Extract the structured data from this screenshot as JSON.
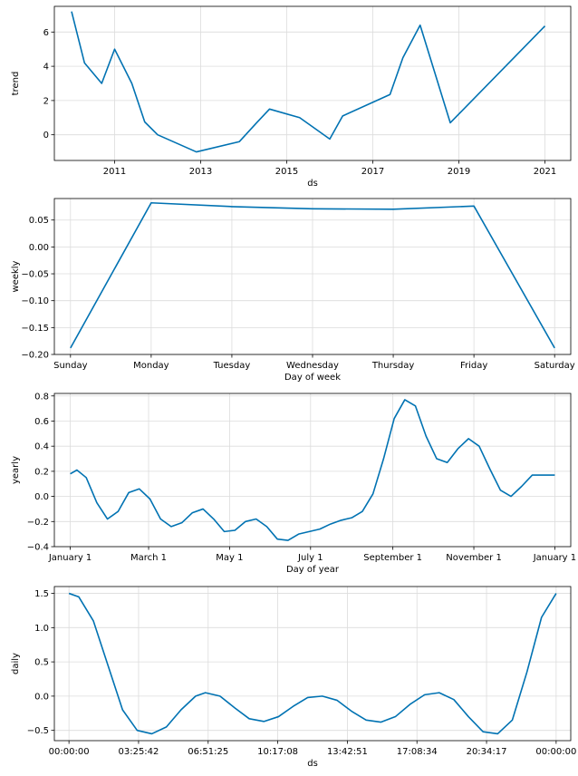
{
  "colors": {
    "line": "#0072B2",
    "grid": "#dcdcdc",
    "axis": "#000000",
    "background": "#ffffff"
  },
  "chart_data": [
    {
      "type": "line",
      "xlabel": "ds",
      "ylabel": "trend",
      "grid": true,
      "xlim": [
        2009.6,
        2021.6
      ],
      "ylim": [
        -1.5,
        7.5
      ],
      "xticks": [
        2011,
        2013,
        2015,
        2017,
        2019,
        2021
      ],
      "xtick_labels": [
        "2011",
        "2013",
        "2015",
        "2017",
        "2019",
        "2021"
      ],
      "yticks": [
        0,
        2,
        4,
        6
      ],
      "ytick_labels": [
        "0",
        "2",
        "4",
        "6"
      ],
      "x": [
        2010.0,
        2010.3,
        2010.7,
        2011.0,
        2011.4,
        2011.7,
        2012.0,
        2012.9,
        2013.9,
        2014.3,
        2014.6,
        2015.3,
        2016.0,
        2016.3,
        2017.4,
        2017.7,
        2018.1,
        2018.8,
        2021.0
      ],
      "y": [
        7.2,
        4.2,
        3.0,
        5.0,
        3.0,
        0.75,
        0.0,
        -1.0,
        -0.4,
        0.7,
        1.5,
        1.0,
        -0.25,
        1.1,
        2.35,
        4.5,
        6.4,
        0.7,
        6.35
      ]
    },
    {
      "type": "line",
      "xlabel": "Day of week",
      "ylabel": "weekly",
      "grid": true,
      "xlim": [
        -0.2,
        6.2
      ],
      "ylim": [
        -0.2,
        0.09
      ],
      "xticks": [
        0,
        1,
        2,
        3,
        4,
        5,
        6
      ],
      "xtick_labels": [
        "Sunday",
        "Monday",
        "Tuesday",
        "Wednesday",
        "Thursday",
        "Friday",
        "Saturday"
      ],
      "yticks": [
        -0.2,
        -0.15,
        -0.1,
        -0.05,
        0.0,
        0.05
      ],
      "ytick_labels": [
        "−0.20",
        "−0.15",
        "−0.10",
        "−0.05",
        "0.00",
        "0.05"
      ],
      "x": [
        0,
        1,
        2,
        3,
        4,
        5,
        6
      ],
      "y": [
        -0.188,
        0.082,
        0.075,
        0.071,
        0.07,
        0.076,
        -0.188
      ]
    },
    {
      "type": "line",
      "xlabel": "Day of year",
      "ylabel": "yearly",
      "grid": true,
      "xlim": [
        -12,
        377
      ],
      "ylim": [
        -0.4,
        0.82
      ],
      "xticks": [
        0,
        59,
        120,
        181,
        243,
        304,
        365
      ],
      "xtick_labels": [
        "January 1",
        "March 1",
        "May 1",
        "July 1",
        "September 1",
        "November 1",
        "January 1"
      ],
      "yticks": [
        -0.4,
        -0.2,
        0.0,
        0.2,
        0.4,
        0.6,
        0.8
      ],
      "ytick_labels": [
        "−0.4",
        "−0.2",
        "0.0",
        "0.2",
        "0.4",
        "0.6",
        "0.8"
      ],
      "x": [
        0,
        5,
        12,
        20,
        28,
        36,
        44,
        52,
        60,
        68,
        76,
        84,
        92,
        100,
        108,
        116,
        124,
        132,
        140,
        148,
        156,
        164,
        172,
        180,
        188,
        196,
        204,
        212,
        220,
        228,
        236,
        244,
        252,
        260,
        268,
        276,
        284,
        292,
        300,
        308,
        316,
        324,
        332,
        340,
        348,
        356,
        365
      ],
      "y": [
        0.18,
        0.21,
        0.15,
        -0.05,
        -0.18,
        -0.12,
        0.03,
        0.06,
        -0.02,
        -0.18,
        -0.24,
        -0.21,
        -0.13,
        -0.1,
        -0.18,
        -0.28,
        -0.27,
        -0.2,
        -0.18,
        -0.24,
        -0.34,
        -0.35,
        -0.3,
        -0.28,
        -0.26,
        -0.22,
        -0.19,
        -0.17,
        -0.12,
        0.02,
        0.3,
        0.62,
        0.77,
        0.72,
        0.48,
        0.3,
        0.27,
        0.38,
        0.46,
        0.4,
        0.22,
        0.05,
        0.0,
        0.08,
        0.17,
        0.17,
        0.17
      ]
    },
    {
      "type": "line",
      "xlabel": "ds",
      "ylabel": "daily",
      "grid": true,
      "xlim": [
        -0.03,
        1.03
      ],
      "ylim": [
        -0.65,
        1.6
      ],
      "xticks": [
        0.0,
        0.142857,
        0.285714,
        0.428571,
        0.571429,
        0.714286,
        0.857143,
        1.0
      ],
      "xtick_labels": [
        "00:00:00",
        "03:25:42",
        "06:51:25",
        "10:17:08",
        "13:42:51",
        "17:08:34",
        "20:34:17",
        "00:00:00"
      ],
      "yticks": [
        -0.5,
        0.0,
        0.5,
        1.0,
        1.5
      ],
      "ytick_labels": [
        "−0.5",
        "0.0",
        "0.5",
        "1.0",
        "1.5"
      ],
      "x": [
        0.0,
        0.02,
        0.05,
        0.08,
        0.11,
        0.14,
        0.17,
        0.2,
        0.23,
        0.26,
        0.28,
        0.31,
        0.34,
        0.37,
        0.4,
        0.43,
        0.46,
        0.49,
        0.52,
        0.55,
        0.58,
        0.61,
        0.64,
        0.67,
        0.7,
        0.73,
        0.76,
        0.79,
        0.82,
        0.85,
        0.88,
        0.91,
        0.94,
        0.97,
        1.0
      ],
      "y": [
        1.5,
        1.45,
        1.1,
        0.45,
        -0.2,
        -0.5,
        -0.55,
        -0.45,
        -0.2,
        0.0,
        0.05,
        0.0,
        -0.17,
        -0.33,
        -0.37,
        -0.3,
        -0.15,
        -0.02,
        0.0,
        -0.06,
        -0.22,
        -0.35,
        -0.38,
        -0.3,
        -0.12,
        0.02,
        0.05,
        -0.05,
        -0.3,
        -0.52,
        -0.55,
        -0.35,
        0.35,
        1.15,
        1.5
      ]
    }
  ]
}
